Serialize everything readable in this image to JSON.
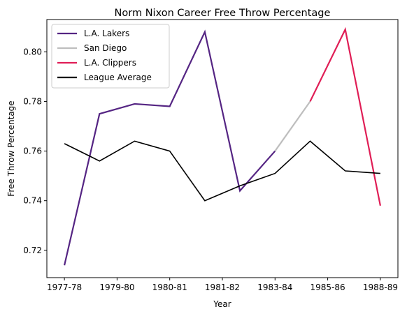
{
  "chart_data": {
    "type": "line",
    "title": "Norm Nixon Career Free Throw Percentage",
    "xlabel": "Year",
    "ylabel": "Free Throw Percentage",
    "x_ticks": [
      "1977-78",
      "1979-80",
      "1980-81",
      "1981-82",
      "1983-84",
      "1985-86",
      "1988-89"
    ],
    "ylim": [
      0.709,
      0.813
    ],
    "y_ticks": [
      0.72,
      0.74,
      0.76,
      0.78,
      0.8
    ],
    "y_tick_labels": [
      "0.72",
      "0.74",
      "0.76",
      "0.78",
      "0.80"
    ],
    "grid": false,
    "legend_position": "upper-left",
    "series": [
      {
        "name": "L.A. Lakers",
        "color": "#552583",
        "points": [
          {
            "x": 0,
            "y": 0.714
          },
          {
            "x": 1,
            "y": 0.775
          },
          {
            "x": 2,
            "y": 0.779
          },
          {
            "x": 3,
            "y": 0.778
          },
          {
            "x": 4,
            "y": 0.808
          },
          {
            "x": 5,
            "y": 0.744
          },
          {
            "x": 6,
            "y": 0.76
          }
        ]
      },
      {
        "name": "San Diego",
        "color": "#bebebe",
        "points": [
          {
            "x": 6,
            "y": 0.76
          },
          {
            "x": 7,
            "y": 0.78
          }
        ]
      },
      {
        "name": "L.A. Clippers",
        "color": "#e01e56",
        "points": [
          {
            "x": 7,
            "y": 0.78
          },
          {
            "x": 8,
            "y": 0.809
          },
          {
            "x": 9,
            "y": 0.738
          }
        ]
      },
      {
        "name": "League Average",
        "color": "#000000",
        "points": [
          {
            "x": 0,
            "y": 0.763
          },
          {
            "x": 1,
            "y": 0.756
          },
          {
            "x": 2,
            "y": 0.764
          },
          {
            "x": 3,
            "y": 0.76
          },
          {
            "x": 4,
            "y": 0.74
          },
          {
            "x": 5,
            "y": 0.746
          },
          {
            "x": 6,
            "y": 0.751
          },
          {
            "x": 7,
            "y": 0.764
          },
          {
            "x": 8,
            "y": 0.752
          },
          {
            "x": 9,
            "y": 0.751
          }
        ]
      }
    ]
  }
}
